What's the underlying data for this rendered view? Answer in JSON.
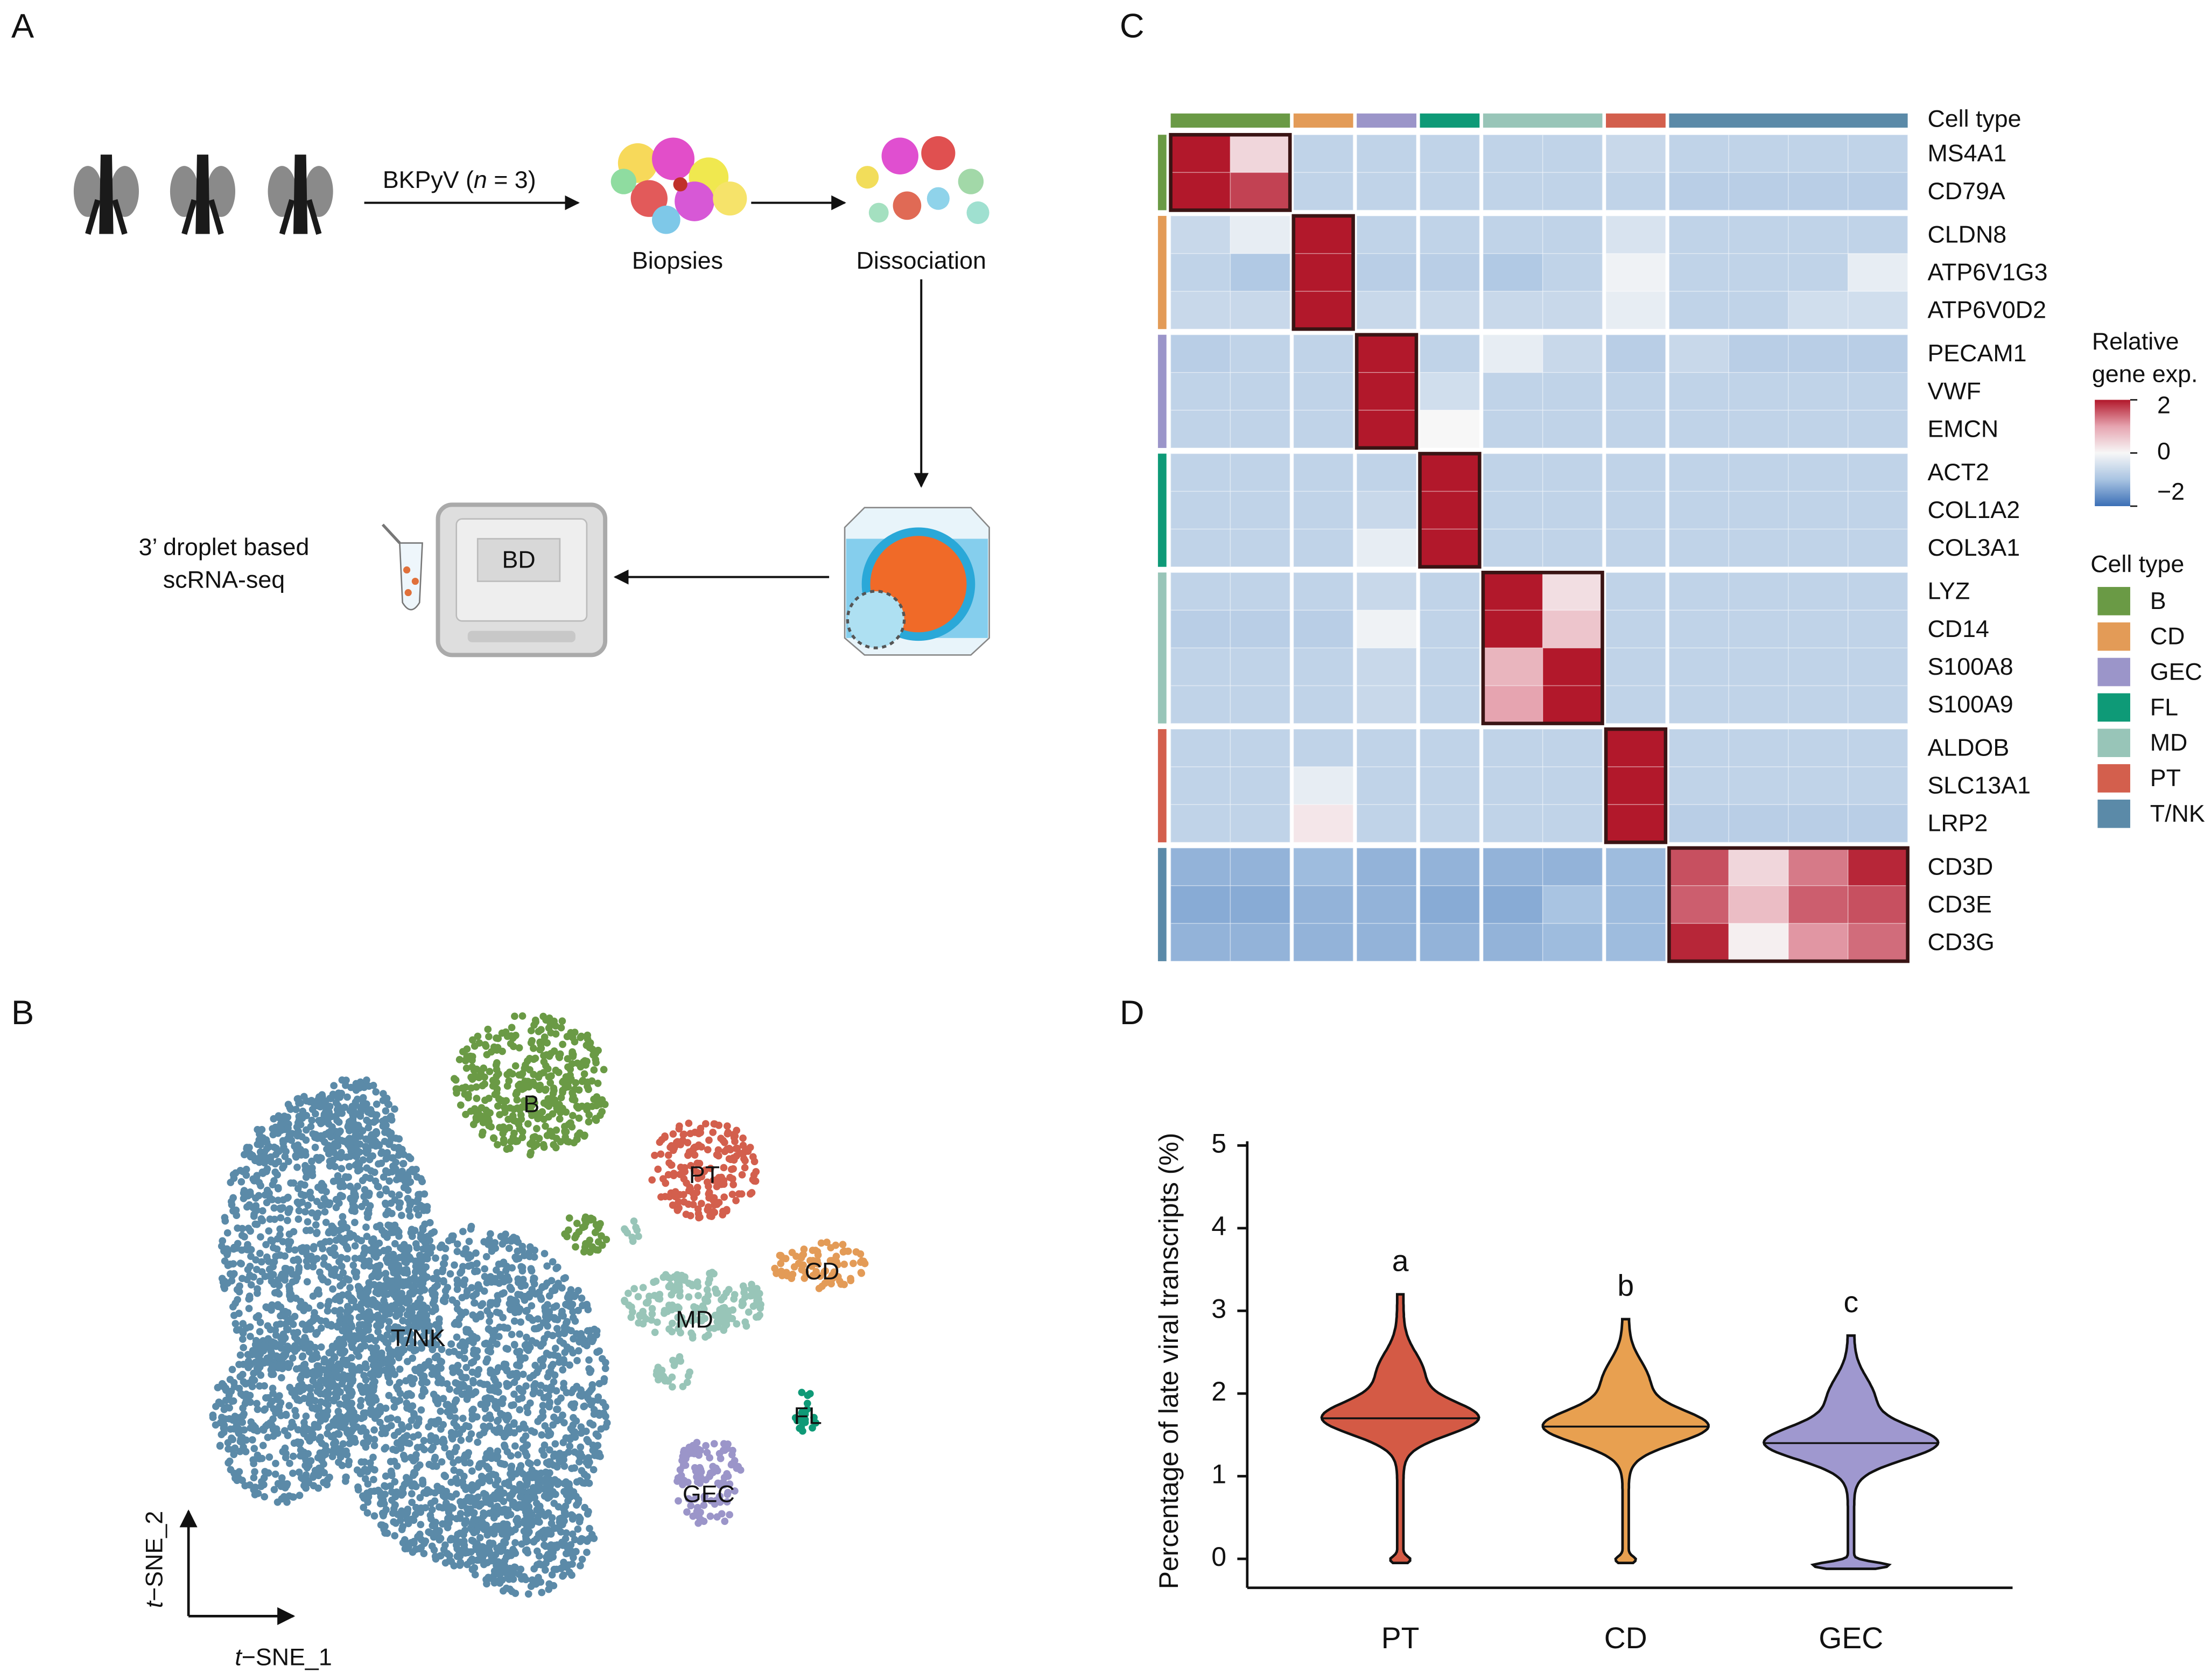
{
  "panel_labels": [
    "A",
    "B",
    "C",
    "D"
  ],
  "diagram": {
    "arrow_label": {
      "prefix": "BKPyV (",
      "italic": "n",
      "suffix": " = 3)"
    },
    "steps": [
      "Biopsies",
      "Dissociation"
    ],
    "device_label": "BD",
    "method": [
      "3’ droplet based",
      "scRNA-seq"
    ]
  },
  "tsne": {
    "clusters": [
      "B",
      "PT",
      "CD",
      "MD",
      "T/NK",
      "FL",
      "GEC"
    ],
    "x_label": {
      "italic": "t",
      "rest": "−SNE_1"
    },
    "y_label": {
      "italic": "t",
      "rest": "−SNE_2"
    }
  },
  "chart_data": [
    {
      "type": "heatmap",
      "column_label": "Cell type",
      "cell_types": [
        {
          "name": "B",
          "color": "#6a9a45",
          "genes": [
            "MS4A1",
            "CD79A"
          ]
        },
        {
          "name": "CD",
          "color": "#e39b57",
          "genes": [
            "CLDN8",
            "ATP6V1G3",
            "ATP6V0D2"
          ]
        },
        {
          "name": "GEC",
          "color": "#9b95c9",
          "genes": [
            "PECAM1",
            "VWF",
            "EMCN"
          ]
        },
        {
          "name": "FL",
          "color": "#0e9a77",
          "genes": [
            "ACT2",
            "COL1A2",
            "COL3A1"
          ]
        },
        {
          "name": "MD",
          "color": "#98c5b8",
          "genes": [
            "LYZ",
            "CD14",
            "S100A8",
            "S100A9"
          ]
        },
        {
          "name": "PT",
          "color": "#d35f4d",
          "genes": [
            "ALDOB",
            "SLC13A1",
            "LRP2"
          ]
        },
        {
          "name": "T/NK",
          "color": "#5b8aa8",
          "genes": [
            "CD3D",
            "CD3E",
            "CD3G"
          ]
        }
      ],
      "columns": [
        "B",
        "B",
        "CD",
        "GEC",
        "FL",
        "MD",
        "MD",
        "PT",
        "T/NK",
        "T/NK",
        "T/NK",
        "T/NK"
      ],
      "values": [
        [
          2,
          0.4,
          -0.7,
          -0.7,
          -0.7,
          -0.7,
          -0.7,
          -0.6,
          -0.7,
          -0.7,
          -0.7,
          -0.7
        ],
        [
          2,
          1.7,
          -0.7,
          -0.7,
          -0.7,
          -0.7,
          -0.7,
          -0.7,
          -0.8,
          -0.8,
          -0.8,
          -0.8
        ],
        [
          -0.6,
          -0.2,
          2,
          -0.7,
          -0.7,
          -0.7,
          -0.7,
          -0.4,
          -0.7,
          -0.7,
          -0.7,
          -0.7
        ],
        [
          -0.7,
          -0.9,
          2,
          -0.8,
          -0.8,
          -0.9,
          -0.7,
          -0.1,
          -0.7,
          -0.7,
          -0.7,
          -0.2
        ],
        [
          -0.6,
          -0.6,
          2,
          -0.6,
          -0.6,
          -0.6,
          -0.6,
          -0.2,
          -0.7,
          -0.7,
          -0.5,
          -0.5
        ],
        [
          -0.8,
          -0.7,
          -0.7,
          2,
          -0.7,
          -0.2,
          -0.6,
          -0.8,
          -0.6,
          -0.8,
          -0.8,
          -0.8
        ],
        [
          -0.7,
          -0.7,
          -0.7,
          2,
          -0.5,
          -0.7,
          -0.7,
          -0.7,
          -0.7,
          -0.7,
          -0.7,
          -0.7
        ],
        [
          -0.7,
          -0.7,
          -0.7,
          2,
          0,
          -0.7,
          -0.7,
          -0.7,
          -0.7,
          -0.7,
          -0.7,
          -0.7
        ],
        [
          -0.7,
          -0.7,
          -0.7,
          -0.7,
          2,
          -0.7,
          -0.7,
          -0.7,
          -0.7,
          -0.7,
          -0.7,
          -0.7
        ],
        [
          -0.7,
          -0.7,
          -0.7,
          -0.6,
          2,
          -0.7,
          -0.7,
          -0.7,
          -0.7,
          -0.7,
          -0.7,
          -0.7
        ],
        [
          -0.7,
          -0.7,
          -0.7,
          -0.2,
          2,
          -0.7,
          -0.7,
          -0.7,
          -0.7,
          -0.7,
          -0.7,
          -0.7
        ],
        [
          -0.7,
          -0.7,
          -0.7,
          -0.6,
          -0.7,
          2,
          0.3,
          -0.7,
          -0.7,
          -0.7,
          -0.7,
          -0.7
        ],
        [
          -0.8,
          -0.8,
          -0.8,
          -0.1,
          -0.7,
          2,
          0.6,
          -0.7,
          -0.7,
          -0.7,
          -0.7,
          -0.7
        ],
        [
          -0.7,
          -0.7,
          -0.7,
          -0.6,
          -0.7,
          0.8,
          2,
          -0.7,
          -0.7,
          -0.7,
          -0.7,
          -0.7
        ],
        [
          -0.7,
          -0.7,
          -0.7,
          -0.6,
          -0.7,
          1.0,
          2,
          -0.7,
          -0.7,
          -0.7,
          -0.7,
          -0.7
        ],
        [
          -0.7,
          -0.7,
          -0.7,
          -0.7,
          -0.7,
          -0.7,
          -0.7,
          2,
          -0.7,
          -0.7,
          -0.7,
          -0.7
        ],
        [
          -0.7,
          -0.7,
          -0.2,
          -0.7,
          -0.7,
          -0.7,
          -0.7,
          2,
          -0.7,
          -0.7,
          -0.7,
          -0.7
        ],
        [
          -0.7,
          -0.7,
          0.2,
          -0.7,
          -0.7,
          -0.7,
          -0.7,
          2,
          -0.8,
          -0.8,
          -0.8,
          -0.8
        ],
        [
          -1.2,
          -1.2,
          -1.1,
          -1.2,
          -1.2,
          -1.2,
          -1.2,
          -1.1,
          1.6,
          0.4,
          1.3,
          1.9
        ],
        [
          -1.3,
          -1.3,
          -1.2,
          -1.2,
          -1.3,
          -1.3,
          -1.0,
          -1.1,
          1.5,
          0.7,
          1.5,
          1.6
        ],
        [
          -1.2,
          -1.2,
          -1.2,
          -1.2,
          -1.2,
          -1.2,
          -1.1,
          -1.1,
          1.9,
          0.1,
          1.1,
          1.4
        ]
      ],
      "colorscale": [
        [
          -2,
          "#3b6fb6"
        ],
        [
          -1,
          "#a9c4e2"
        ],
        [
          0,
          "#f7f7f7"
        ],
        [
          1,
          "#e6a4b0"
        ],
        [
          2,
          "#b2182b"
        ]
      ],
      "colorbar": {
        "title": [
          "Relative",
          "gene exp."
        ],
        "lim": [
          -2,
          2
        ],
        "ticks": [
          2,
          0,
          {
            "value": -2,
            "label": "−2"
          }
        ]
      },
      "legend_title": "Cell type"
    },
    {
      "type": "violin",
      "ylabel": "Percentage of late viral transcripts (%)",
      "categories": [
        "PT",
        "CD",
        "GEC"
      ],
      "colors": [
        "#d45a45",
        "#e8a050",
        "#9f98cf"
      ],
      "medians": [
        1.7,
        1.6,
        1.4
      ],
      "mins": [
        -0.05,
        -0.05,
        -0.12
      ],
      "maxs": [
        3.2,
        2.9,
        2.7
      ],
      "annotations": [
        "a",
        "b",
        "c"
      ],
      "ylim": [
        -0.35,
        5
      ],
      "yticks": [
        0,
        1,
        2,
        3,
        4,
        5
      ]
    }
  ]
}
